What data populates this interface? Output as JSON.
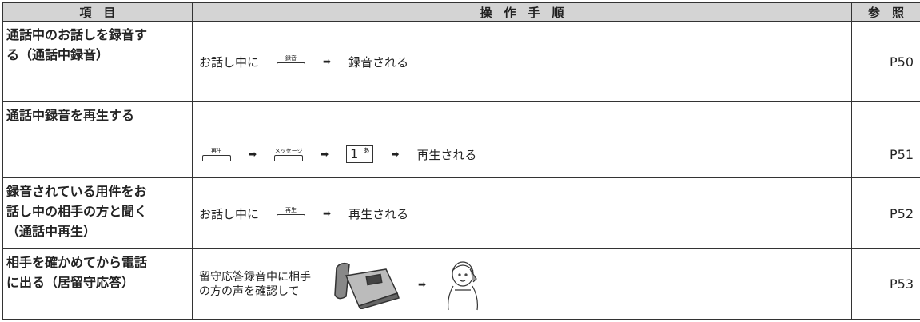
{
  "table": {
    "header": [
      "項　目",
      "操　作　手　順",
      "参　照"
    ],
    "rows": [
      {
        "item": [
          "通話中のお話しを録音す",
          "る（通話中録音）"
        ],
        "before": "お話し中に",
        "key": "録音",
        "after": "録音される",
        "ref": "P50"
      },
      {
        "item": [
          "通話中録音を再生する"
        ],
        "key1": "再生",
        "key2": "メッセージ",
        "digit": "1",
        "kana": "あ",
        "after": "再生される",
        "ref": "P51"
      },
      {
        "item": [
          "録音されている用件をお",
          "話し中の相手の方と聞く",
          "（通話中再生）"
        ],
        "before": "お話し中に",
        "key": "再生",
        "after": "再生される",
        "ref": "P52"
      },
      {
        "item": [
          "相手を確かめてから電話",
          "に出る（居留守応答）"
        ],
        "before": [
          "留守応答録音中に相手",
          "の方の声を確認して"
        ],
        "ref": "P53"
      }
    ]
  }
}
